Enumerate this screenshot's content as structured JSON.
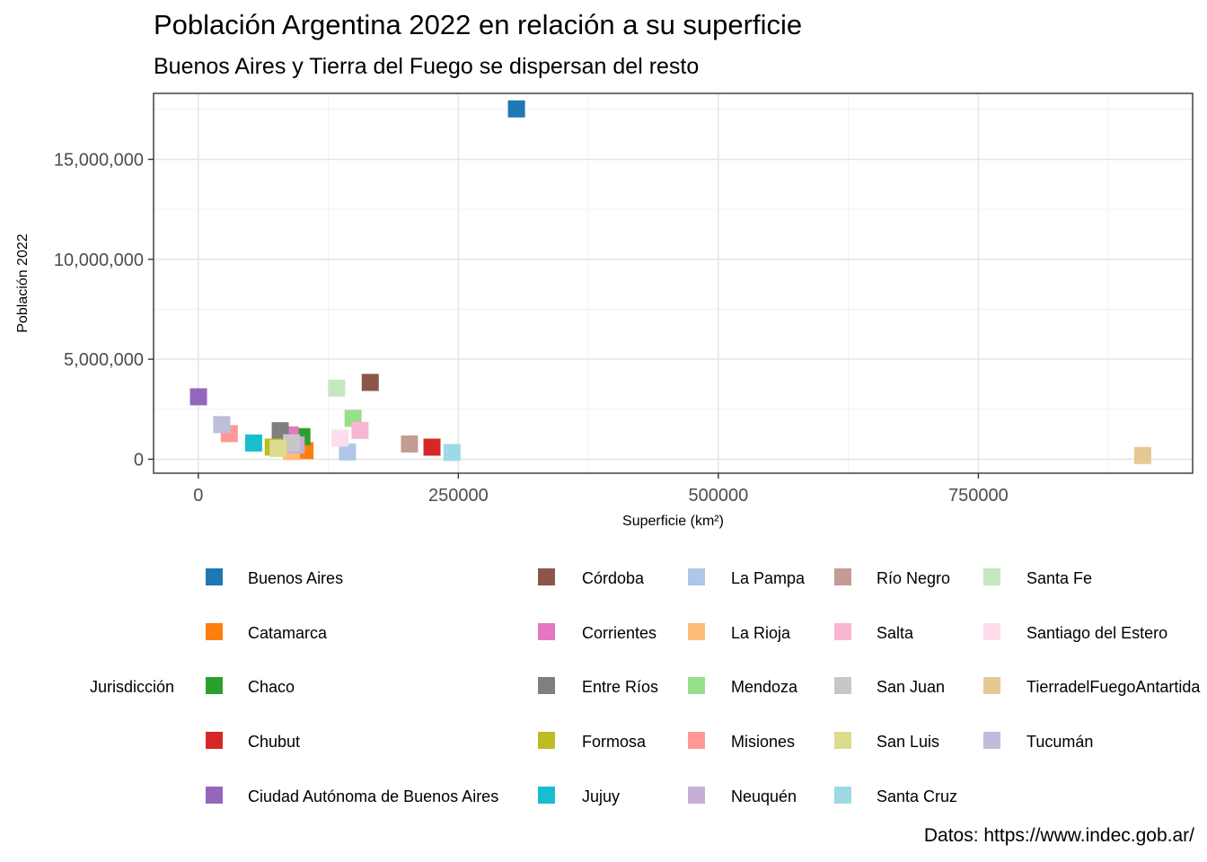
{
  "chart_data": {
    "type": "scatter",
    "title": "Población Argentina 2022 en relación a su superficie",
    "subtitle": "Buenos Aires y Tierra del Fuego se dispersan del resto",
    "xlabel": "Superficie (km²)",
    "ylabel": "Población 2022",
    "xlim": [
      -43000,
      956000
    ],
    "ylim": [
      -700000,
      18300000
    ],
    "x_ticks": [
      0,
      250000,
      500000,
      750000
    ],
    "x_tick_labels": [
      "0",
      "250000",
      "500000",
      "750000"
    ],
    "y_ticks": [
      0,
      5000000,
      10000000,
      15000000
    ],
    "y_tick_labels": [
      "0",
      "5,000,000",
      "10,000,000",
      "15,000,000"
    ],
    "grid": true,
    "legend_title": "Jurisdicción",
    "legend_position": "bottom",
    "caption": "Datos: https://www.indec.gob.ar/",
    "series": [
      {
        "name": "Buenos Aires",
        "color": "#1F77B4",
        "x": 305907,
        "y": 17523996
      },
      {
        "name": "Catamarca",
        "color": "#FF7F0E",
        "x": 102602,
        "y": 429562
      },
      {
        "name": "Chaco",
        "color": "#2CA02C",
        "x": 99633,
        "y": 1129606
      },
      {
        "name": "Chubut",
        "color": "#D62728",
        "x": 224686,
        "y": 603120
      },
      {
        "name": "Ciudad Autónoma de Buenos Aires",
        "color": "#9467BD",
        "x": 200,
        "y": 3121707
      },
      {
        "name": "Córdoba",
        "color": "#8C564B",
        "x": 165321,
        "y": 3840905
      },
      {
        "name": "Corrientes",
        "color": "#E377C2",
        "x": 88199,
        "y": 1212696
      },
      {
        "name": "Entre Ríos",
        "color": "#7F7F7F",
        "x": 78781,
        "y": 1425578
      },
      {
        "name": "Formosa",
        "color": "#BCBD22",
        "x": 72066,
        "y": 607419
      },
      {
        "name": "Jujuy",
        "color": "#17BECF",
        "x": 53219,
        "y": 811611
      },
      {
        "name": "La Pampa",
        "color": "#AEC7E8",
        "x": 143440,
        "y": 361859
      },
      {
        "name": "La Rioja",
        "color": "#FFBB78",
        "x": 89680,
        "y": 384607
      },
      {
        "name": "Mendoza",
        "color": "#98DF8A",
        "x": 148827,
        "y": 2043540
      },
      {
        "name": "Misiones",
        "color": "#FF9896",
        "x": 29801,
        "y": 1278873
      },
      {
        "name": "Neuquén",
        "color": "#C5B0D5",
        "x": 94078,
        "y": 710814
      },
      {
        "name": "Río Negro",
        "color": "#C49C94",
        "x": 203013,
        "y": 762067
      },
      {
        "name": "Salta",
        "color": "#F7B6D2",
        "x": 155488,
        "y": 1440672
      },
      {
        "name": "San Juan",
        "color": "#C7C7C7",
        "x": 89651,
        "y": 822853
      },
      {
        "name": "San Luis",
        "color": "#DBDB8D",
        "x": 76748,
        "y": 542069
      },
      {
        "name": "Santa Cruz",
        "color": "#9EDAE5",
        "x": 243943,
        "y": 337226
      },
      {
        "name": "Santa Fe",
        "color": "#C5E8C0",
        "x": 133007,
        "y": 3556522
      },
      {
        "name": "Santiago del Estero",
        "color": "#FDDDEB",
        "x": 136351,
        "y": 1054028
      },
      {
        "name": "TierradelFuegoAntartida",
        "color": "#E6C893",
        "x": 908000,
        "y": 185732
      },
      {
        "name": "Tucumán",
        "color": "#BEBEDB",
        "x": 22524,
        "y": 1731820
      }
    ]
  }
}
